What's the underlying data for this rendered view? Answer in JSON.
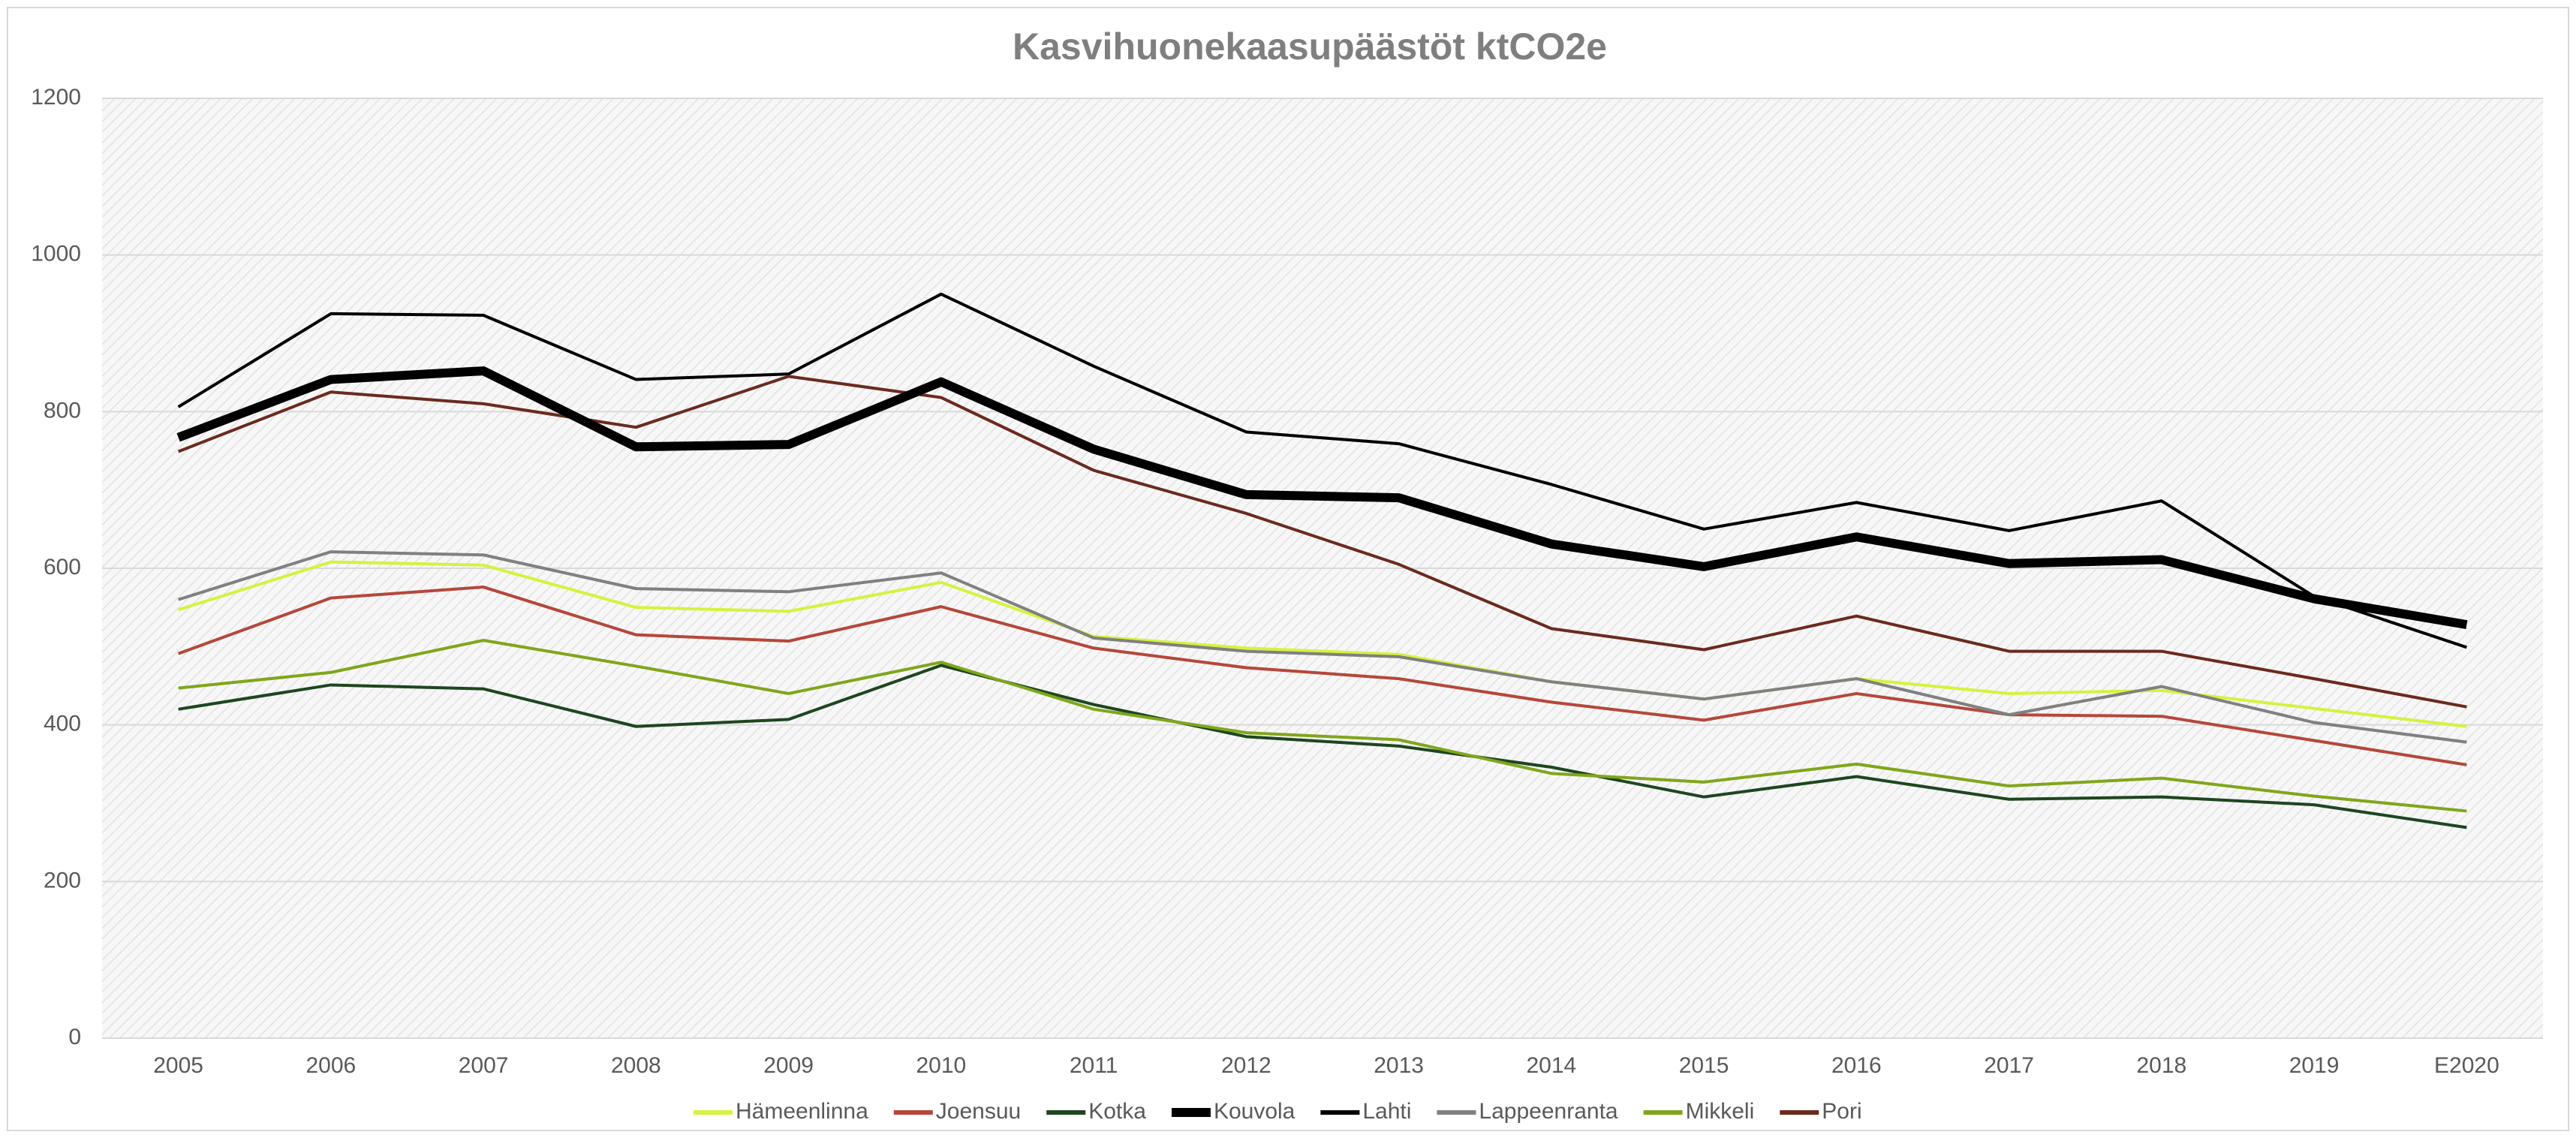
{
  "chart_data": {
    "type": "line",
    "title": "Kasvihuonekaasupäästöt ktCO2e",
    "categories": [
      "2005",
      "2006",
      "2007",
      "2008",
      "2009",
      "2010",
      "2011",
      "2012",
      "2013",
      "2014",
      "2015",
      "2016",
      "2017",
      "2018",
      "2019",
      "E2020"
    ],
    "ylim": [
      0,
      1200
    ],
    "yticks": [
      0,
      200,
      400,
      600,
      800,
      1000,
      1200
    ],
    "grid": true,
    "legend": "bottom",
    "series": [
      {
        "name": "Hämeenlinna",
        "color": "#d6f23e",
        "values": [
          547,
          608,
          604,
          550,
          545,
          582,
          513,
          498,
          490,
          455,
          433,
          459,
          440,
          444,
          421,
          398
        ]
      },
      {
        "name": "Joensuu",
        "color": "#b5473a",
        "values": [
          491,
          562,
          576,
          515,
          507,
          551,
          498,
          473,
          459,
          429,
          406,
          440,
          413,
          411,
          380,
          349
        ]
      },
      {
        "name": "Kotka",
        "color": "#1e4620",
        "values": [
          420,
          451,
          446,
          398,
          407,
          476,
          426,
          385,
          373,
          346,
          308,
          334,
          305,
          308,
          298,
          269
        ]
      },
      {
        "name": "Kouvola",
        "color": "#000000",
        "values": [
          767,
          841,
          852,
          755,
          758,
          838,
          752,
          694,
          690,
          631,
          602,
          640,
          606,
          611,
          561,
          528
        ]
      },
      {
        "name": "Lahti",
        "color": "#000000",
        "values": [
          806,
          925,
          923,
          841,
          848,
          950,
          858,
          774,
          759,
          707,
          650,
          684,
          648,
          686,
          564,
          499
        ]
      },
      {
        "name": "Lappeenranta",
        "color": "#808080",
        "values": [
          560,
          621,
          617,
          574,
          570,
          594,
          511,
          494,
          487,
          455,
          433,
          459,
          413,
          449,
          403,
          378
        ]
      },
      {
        "name": "Mikkeli",
        "color": "#7fa61a",
        "values": [
          447,
          467,
          508,
          475,
          440,
          480,
          420,
          390,
          381,
          338,
          327,
          350,
          322,
          332,
          309,
          290
        ]
      },
      {
        "name": "Pori",
        "color": "#6b2a1e",
        "values": [
          749,
          825,
          810,
          780,
          845,
          818,
          725,
          670,
          605,
          523,
          496,
          539,
          494,
          494,
          459,
          423
        ]
      }
    ]
  }
}
